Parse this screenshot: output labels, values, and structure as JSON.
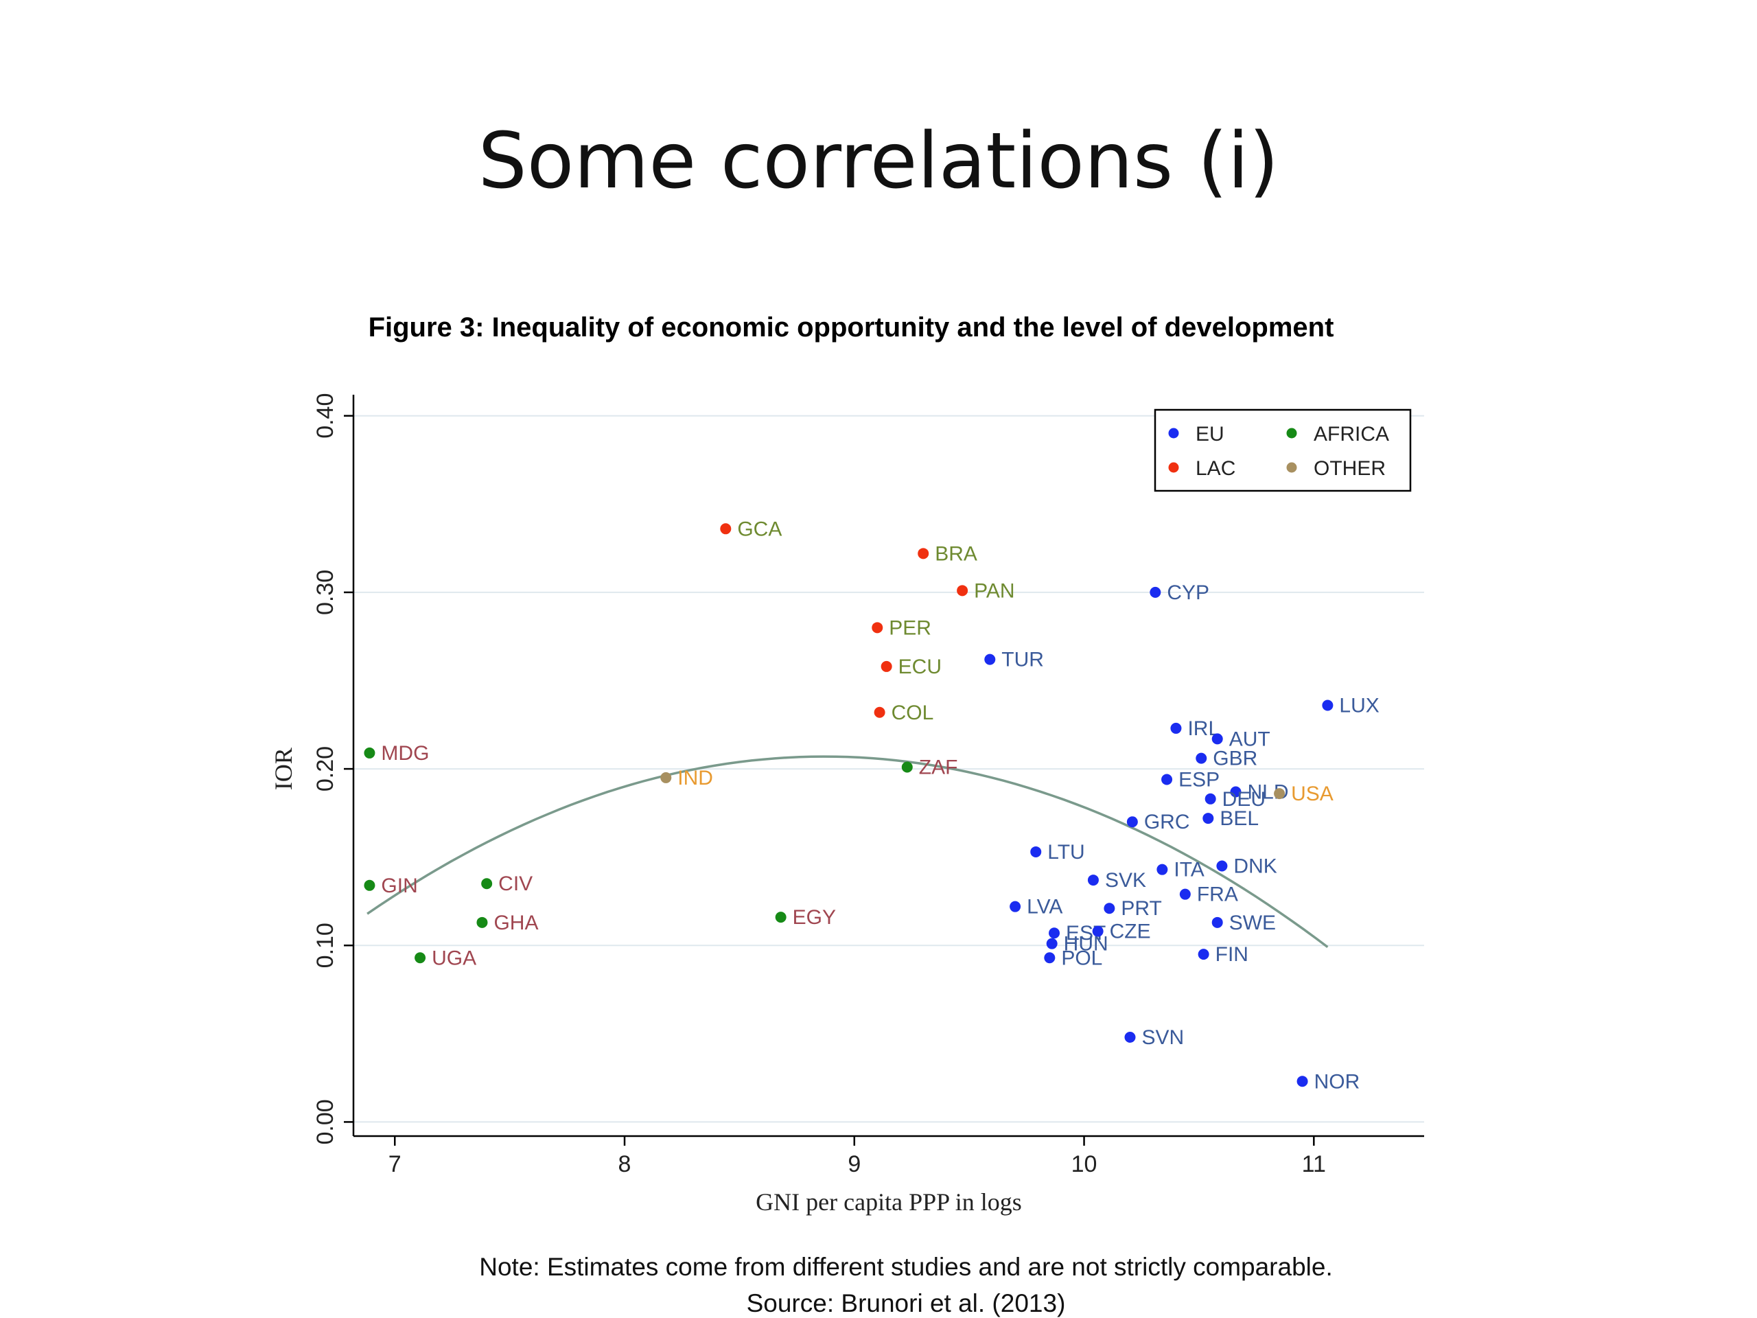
{
  "slide": {
    "title": "Some correlations (i)",
    "note_line1": "Note: Estimates come from different studies and are not strictly comparable.",
    "note_line2": "Source: Brunori et al. (2013)"
  },
  "chart_data": {
    "type": "scatter",
    "title": "Figure 3: Inequality of economic opportunity and the level of development",
    "xlabel": "GNI per capita PPP in logs",
    "ylabel": "IOR",
    "xlim": [
      6.82,
      11.48
    ],
    "ylim": [
      -0.008,
      0.41
    ],
    "xticks": [
      7,
      8,
      9,
      10,
      11
    ],
    "xtick_labels": [
      "7",
      "8",
      "9",
      "10",
      "11"
    ],
    "yticks": [
      0.0,
      0.1,
      0.2,
      0.3,
      0.4
    ],
    "ytick_labels": [
      "0.00",
      "0.10",
      "0.20",
      "0.30",
      "0.40"
    ],
    "grid": "horizontal",
    "legend_position": "top-right",
    "groups": [
      {
        "name": "EU",
        "color": "#1a2cf0",
        "label_color": "#3a5a9a"
      },
      {
        "name": "AFRICA",
        "color": "#168a16",
        "label_color": "#a04650"
      },
      {
        "name": "LAC",
        "color": "#f03010",
        "label_color": "#6e8a30"
      },
      {
        "name": "OTHER",
        "color": "#a89060",
        "label_color": "#e89a30"
      }
    ],
    "points": [
      {
        "label": "GCA",
        "group": "LAC",
        "x": 8.44,
        "y": 0.336
      },
      {
        "label": "BRA",
        "group": "LAC",
        "x": 9.3,
        "y": 0.322
      },
      {
        "label": "PAN",
        "group": "LAC",
        "x": 9.47,
        "y": 0.301
      },
      {
        "label": "PER",
        "group": "LAC",
        "x": 9.1,
        "y": 0.28
      },
      {
        "label": "ECU",
        "group": "LAC",
        "x": 9.14,
        "y": 0.258
      },
      {
        "label": "COL",
        "group": "LAC",
        "x": 9.11,
        "y": 0.232
      },
      {
        "label": "CYP",
        "group": "EU",
        "x": 10.31,
        "y": 0.3
      },
      {
        "label": "TUR",
        "group": "EU",
        "x": 9.59,
        "y": 0.262
      },
      {
        "label": "LUX",
        "group": "EU",
        "x": 11.06,
        "y": 0.236
      },
      {
        "label": "IRL",
        "group": "EU",
        "x": 10.4,
        "y": 0.223
      },
      {
        "label": "AUT",
        "group": "EU",
        "x": 10.58,
        "y": 0.217
      },
      {
        "label": "GBR",
        "group": "EU",
        "x": 10.51,
        "y": 0.206
      },
      {
        "label": "ESP",
        "group": "EU",
        "x": 10.36,
        "y": 0.194
      },
      {
        "label": "NLD",
        "group": "EU",
        "x": 10.66,
        "y": 0.187
      },
      {
        "label": "DEU",
        "group": "EU",
        "x": 10.55,
        "y": 0.183
      },
      {
        "label": "BEL",
        "group": "EU",
        "x": 10.54,
        "y": 0.172
      },
      {
        "label": "GRC",
        "group": "EU",
        "x": 10.21,
        "y": 0.17
      },
      {
        "label": "LTU",
        "group": "EU",
        "x": 9.79,
        "y": 0.153
      },
      {
        "label": "DNK",
        "group": "EU",
        "x": 10.6,
        "y": 0.145
      },
      {
        "label": "ITA",
        "group": "EU",
        "x": 10.34,
        "y": 0.143
      },
      {
        "label": "SVK",
        "group": "EU",
        "x": 10.04,
        "y": 0.137
      },
      {
        "label": "FRA",
        "group": "EU",
        "x": 10.44,
        "y": 0.129
      },
      {
        "label": "LVA",
        "group": "EU",
        "x": 9.7,
        "y": 0.122
      },
      {
        "label": "PRT",
        "group": "EU",
        "x": 10.11,
        "y": 0.121
      },
      {
        "label": "SWE",
        "group": "EU",
        "x": 10.58,
        "y": 0.113
      },
      {
        "label": "EST",
        "group": "EU",
        "x": 9.87,
        "y": 0.107
      },
      {
        "label": "CZE",
        "group": "EU",
        "x": 10.06,
        "y": 0.108
      },
      {
        "label": "HUN",
        "group": "EU",
        "x": 9.86,
        "y": 0.101
      },
      {
        "label": "FIN",
        "group": "EU",
        "x": 10.52,
        "y": 0.095
      },
      {
        "label": "POL",
        "group": "EU",
        "x": 9.85,
        "y": 0.093
      },
      {
        "label": "SVN",
        "group": "EU",
        "x": 10.2,
        "y": 0.048
      },
      {
        "label": "NOR",
        "group": "EU",
        "x": 10.95,
        "y": 0.023
      },
      {
        "label": "MDG",
        "group": "AFRICA",
        "x": 6.89,
        "y": 0.209
      },
      {
        "label": "ZAF",
        "group": "AFRICA",
        "x": 9.23,
        "y": 0.201
      },
      {
        "label": "GIN",
        "group": "AFRICA",
        "x": 6.89,
        "y": 0.134
      },
      {
        "label": "CIV",
        "group": "AFRICA",
        "x": 7.4,
        "y": 0.135
      },
      {
        "label": "GHA",
        "group": "AFRICA",
        "x": 7.38,
        "y": 0.113
      },
      {
        "label": "EGY",
        "group": "AFRICA",
        "x": 8.68,
        "y": 0.116
      },
      {
        "label": "UGA",
        "group": "AFRICA",
        "x": 7.11,
        "y": 0.093
      },
      {
        "label": "IND",
        "group": "OTHER",
        "x": 8.18,
        "y": 0.195
      },
      {
        "label": "USA",
        "group": "OTHER",
        "x": 10.85,
        "y": 0.186
      }
    ],
    "fit_curve": {
      "type": "quadratic",
      "color": "#7a9a8c",
      "x_range": [
        6.88,
        11.06
      ],
      "vertex_x": 8.87,
      "vertex_y": 0.207,
      "curvature": -0.0225
    }
  }
}
